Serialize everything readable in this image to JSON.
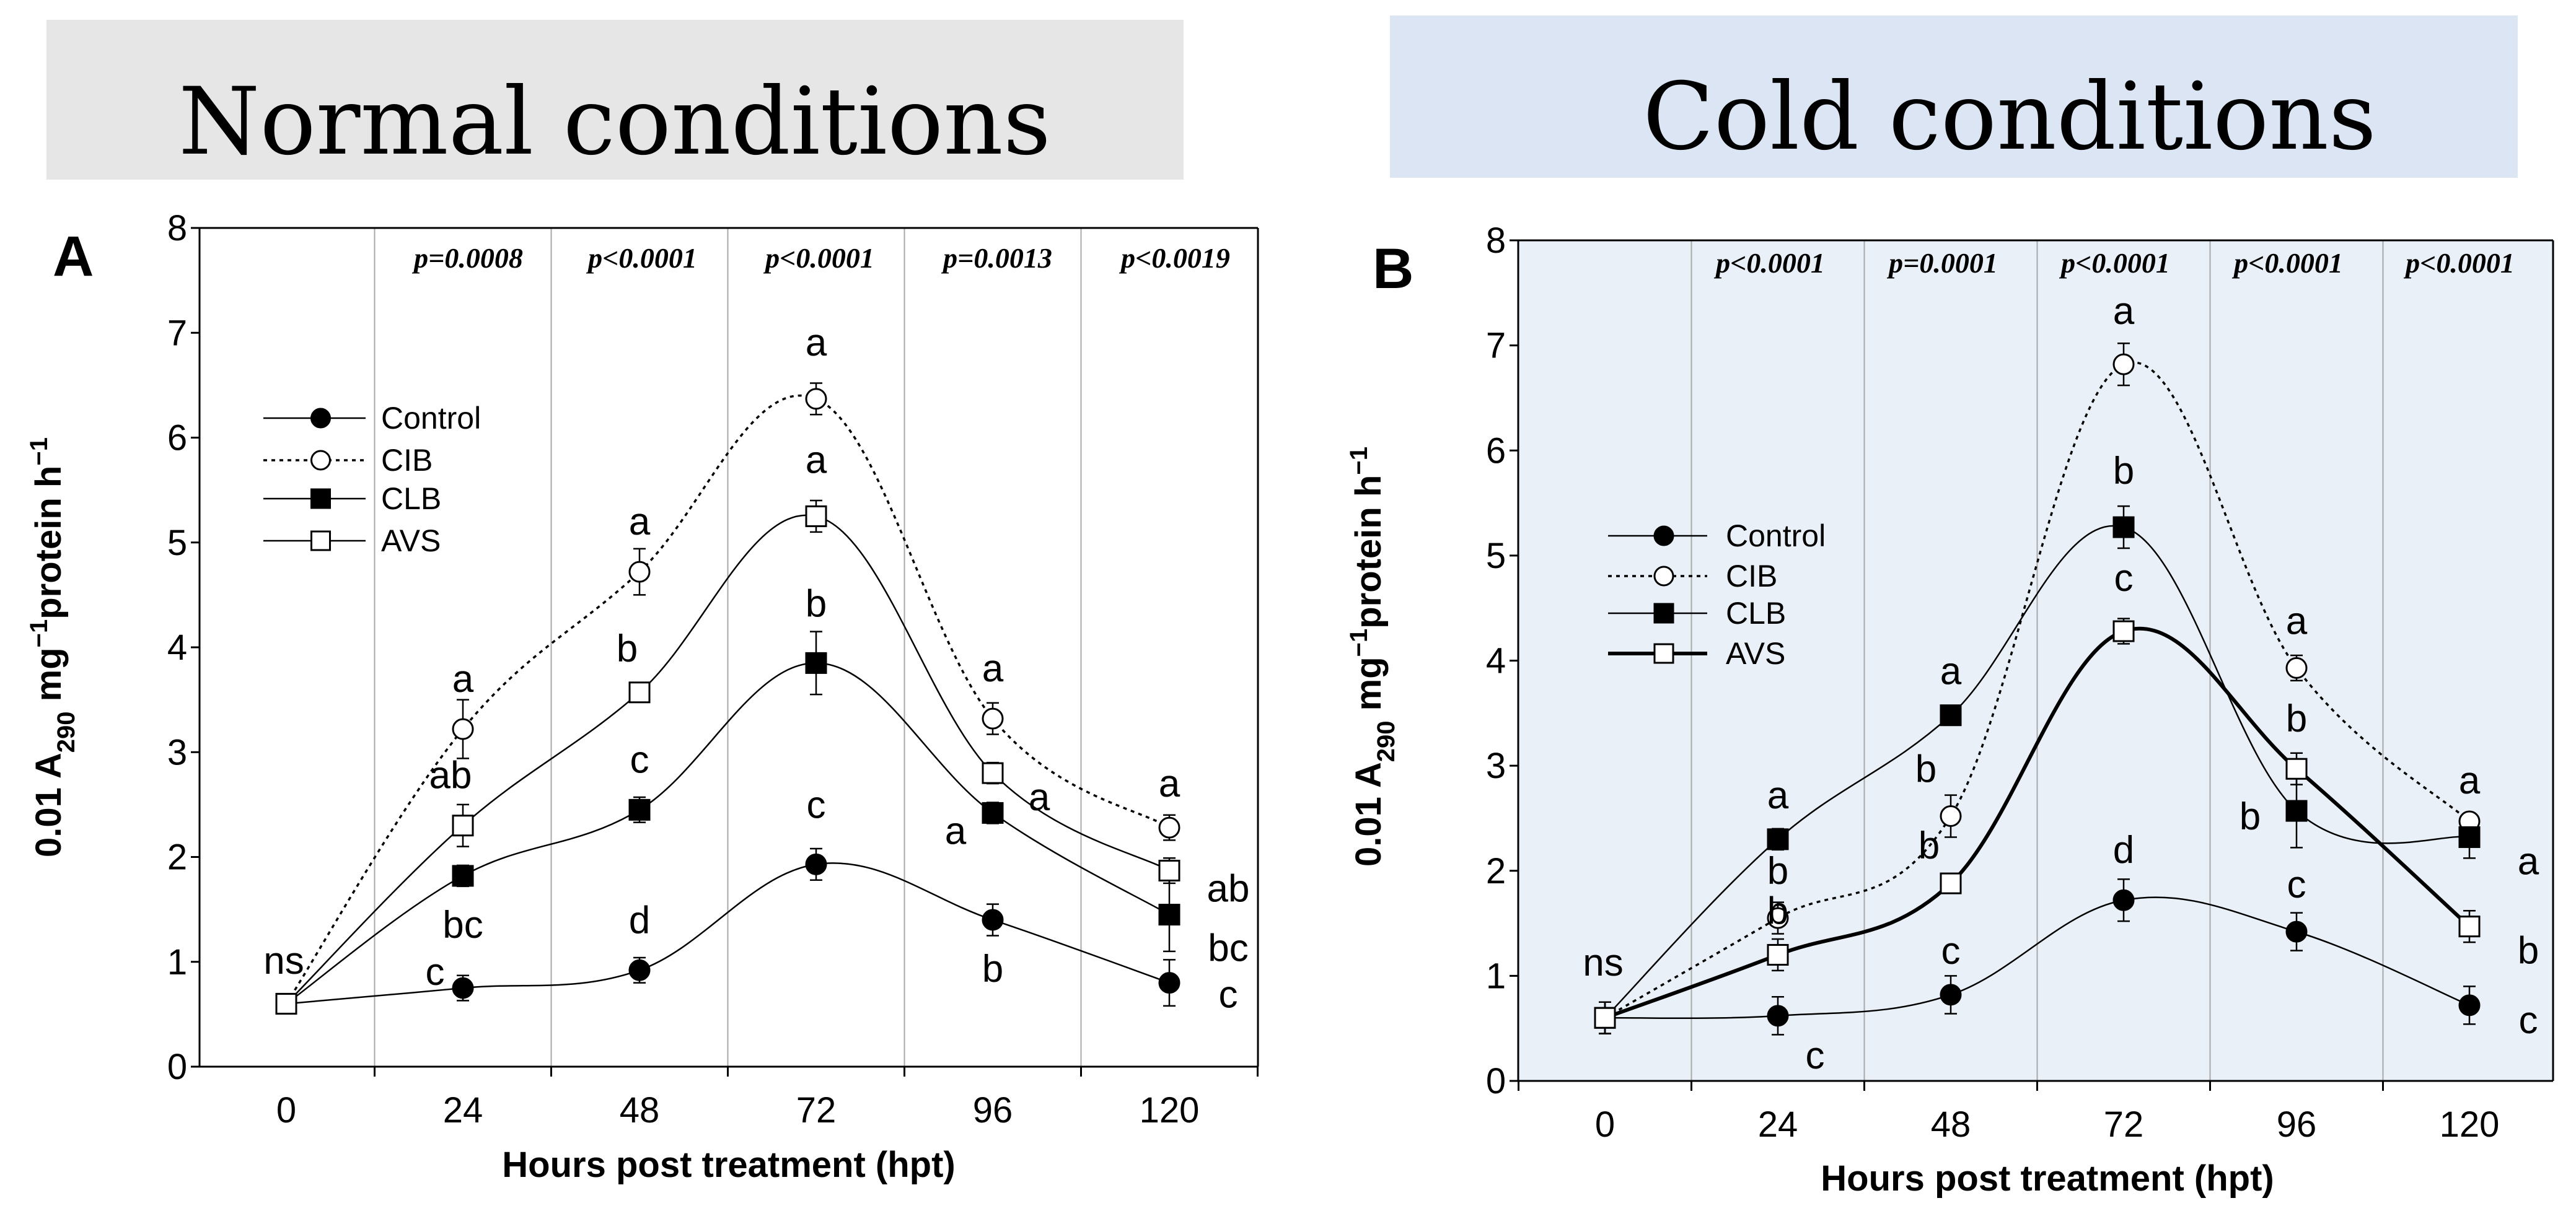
{
  "colors": {
    "title_left_bg": "#e6e6e6",
    "title_right_bg": "#dbe5f3",
    "plot_right_bg": "#e9f0f8",
    "line": "#000000",
    "grid": "#a8a8a8"
  },
  "chart_data": [
    {
      "type": "line",
      "panel": "A",
      "title": "Normal conditions",
      "xlabel": "Hours post treatment (hpt)",
      "ylabel_main": "0.01 A",
      "ylabel_sub": "290",
      "ylabel_rest1": " mg",
      "ylabel_sup1": "−1",
      "ylabel_rest2": "protein h",
      "ylabel_sup2": "−1",
      "x": [
        0,
        24,
        48,
        72,
        96,
        120
      ],
      "x_tick_labels": [
        "0",
        "24",
        "48",
        "72",
        "96",
        "120"
      ],
      "ylim": [
        0,
        8
      ],
      "y_ticks": [
        0,
        1,
        2,
        3,
        4,
        5,
        6,
        7,
        8
      ],
      "y_tick_labels": [
        "0",
        "1",
        "2",
        "3",
        "4",
        "5",
        "6",
        "7",
        "8"
      ],
      "p_values": [
        "p=0.0008",
        "p<0.0001",
        "p<0.0001",
        "p=0.0013",
        "p<0.0019"
      ],
      "ns_label": "ns",
      "legend_position": "upper-left",
      "series": [
        {
          "name": "Control",
          "marker": "filled-circle",
          "line": "thin",
          "values": [
            0.6,
            0.75,
            0.92,
            1.93,
            1.4,
            0.8
          ],
          "errors": [
            0.05,
            0.12,
            0.12,
            0.15,
            0.15,
            0.22
          ],
          "letters": [
            "",
            "c",
            "d",
            "c",
            "b",
            "c"
          ]
        },
        {
          "name": "CIB",
          "marker": "open-circle",
          "line": "dotted",
          "values": [
            0.6,
            3.22,
            4.72,
            6.37,
            3.32,
            2.28
          ],
          "errors": [
            0.05,
            0.28,
            0.22,
            0.15,
            0.15,
            0.12
          ],
          "letters": [
            "",
            "a",
            "a",
            "a",
            "a",
            "a"
          ]
        },
        {
          "name": "CLB",
          "marker": "filled-square",
          "line": "thin",
          "values": [
            0.6,
            1.82,
            2.45,
            3.85,
            2.42,
            1.45
          ],
          "errors": [
            0.05,
            0.1,
            0.12,
            0.3,
            0.1,
            0.35
          ],
          "letters": [
            "",
            "bc",
            "c",
            "b",
            "a",
            "bc"
          ]
        },
        {
          "name": "AVS",
          "marker": "open-square",
          "line": "thin",
          "values": [
            0.6,
            2.3,
            3.57,
            5.25,
            2.8,
            1.87
          ],
          "errors": [
            0.05,
            0.2,
            0.07,
            0.15,
            0.1,
            0.12
          ],
          "letters": [
            "",
            "ab",
            "b",
            "a",
            "a",
            "ab"
          ]
        }
      ]
    },
    {
      "type": "line",
      "panel": "B",
      "title": "Cold conditions",
      "xlabel": "Hours post treatment (hpt)",
      "ylabel_main": "0.01 A",
      "ylabel_sub": "290",
      "ylabel_rest1": " mg",
      "ylabel_sup1": "−1",
      "ylabel_rest2": "protein h",
      "ylabel_sup2": "−1",
      "x": [
        0,
        24,
        48,
        72,
        96,
        120
      ],
      "x_tick_labels": [
        "0",
        "24",
        "48",
        "72",
        "96",
        "120"
      ],
      "ylim": [
        0,
        8
      ],
      "y_ticks": [
        0,
        1,
        2,
        3,
        4,
        5,
        6,
        7,
        8
      ],
      "y_tick_labels": [
        "0",
        "1",
        "2",
        "3",
        "4",
        "5",
        "6",
        "7",
        "8"
      ],
      "p_values": [
        "p<0.0001",
        "p=0.0001",
        "p<0.0001",
        "p<0.0001",
        "p<0.0001"
      ],
      "ns_label": "ns",
      "legend_position": "middle-left",
      "series": [
        {
          "name": "Control",
          "marker": "filled-circle",
          "line": "thin",
          "values": [
            0.6,
            0.62,
            0.82,
            1.72,
            1.42,
            0.72
          ],
          "errors": [
            0.15,
            0.18,
            0.18,
            0.2,
            0.18,
            0.18
          ],
          "letters": [
            "",
            "c",
            "c",
            "d",
            "c",
            "c"
          ]
        },
        {
          "name": "CIB",
          "marker": "open-circle",
          "line": "dotted",
          "values": [
            0.6,
            1.55,
            2.52,
            6.82,
            3.93,
            2.47
          ],
          "errors": [
            0.15,
            0.15,
            0.2,
            0.2,
            0.12,
            0.05
          ],
          "letters": [
            "",
            "b",
            "b",
            "a",
            "a",
            "a"
          ]
        },
        {
          "name": "CLB",
          "marker": "filled-square",
          "line": "thin",
          "values": [
            0.6,
            2.3,
            3.48,
            5.27,
            2.57,
            2.32
          ],
          "errors": [
            0.15,
            0.1,
            0.08,
            0.2,
            0.35,
            0.2
          ],
          "letters": [
            "",
            "a",
            "a",
            "b",
            "b",
            "a"
          ]
        },
        {
          "name": "AVS",
          "marker": "open-square",
          "line": "thick",
          "values": [
            0.6,
            1.2,
            1.88,
            4.28,
            2.97,
            1.47
          ],
          "errors": [
            0.15,
            0.15,
            0.05,
            0.12,
            0.15,
            0.15
          ],
          "letters": [
            "",
            "b",
            "b",
            "c",
            "b",
            "b"
          ]
        }
      ]
    }
  ]
}
